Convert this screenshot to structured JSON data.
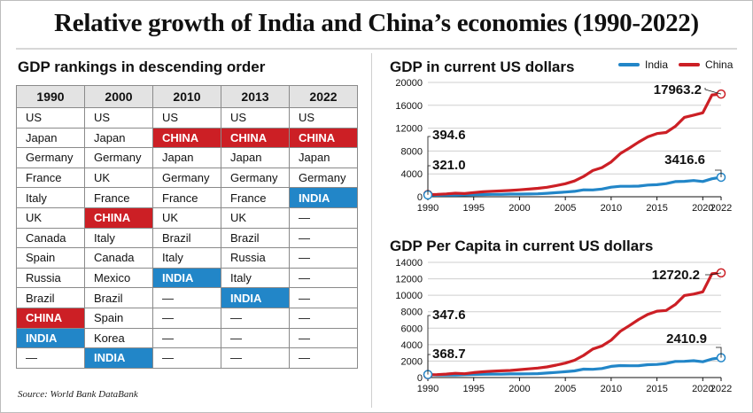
{
  "title": "Relative growth of India and China’s economies (1990-2022)",
  "rankings": {
    "heading": "GDP rankings in descending order",
    "columns": [
      "1990",
      "2000",
      "2010",
      "2013",
      "2022"
    ],
    "rows": [
      [
        "US",
        "US",
        "US",
        "US",
        "US"
      ],
      [
        "Japan",
        "Japan",
        "CHINA",
        "CHINA",
        "CHINA"
      ],
      [
        "Germany",
        "Germany",
        "Japan",
        "Japan",
        "Japan"
      ],
      [
        "France",
        "UK",
        "Germany",
        "Germany",
        "Germany"
      ],
      [
        "Italy",
        "France",
        "France",
        "France",
        "INDIA"
      ],
      [
        "UK",
        "CHINA",
        "UK",
        "UK",
        "—"
      ],
      [
        "Canada",
        "Italy",
        "Brazil",
        "Brazil",
        "—"
      ],
      [
        "Spain",
        "Canada",
        "Italy",
        "Russia",
        "—"
      ],
      [
        "Russia",
        "Mexico",
        "INDIA",
        "Italy",
        "—"
      ],
      [
        "Brazil",
        "Brazil",
        "—",
        "INDIA",
        "—"
      ],
      [
        "CHINA",
        "Spain",
        "—",
        "—",
        "—"
      ],
      [
        "INDIA",
        "Korea",
        "—",
        "—",
        "—"
      ],
      [
        "—",
        "INDIA",
        "—",
        "—",
        "—"
      ]
    ],
    "colors": {
      "china": "#cc1f25",
      "india": "#2286c8"
    }
  },
  "source": "Source: World Bank DataBank",
  "legend": {
    "india": "India",
    "china": "China"
  },
  "chart_data": [
    {
      "type": "line",
      "title": "GDP in current US dollars",
      "xlabel": "",
      "ylabel": "",
      "xlim": [
        1990,
        2022
      ],
      "ylim": [
        0,
        20000
      ],
      "xticks": [
        1990,
        1995,
        2000,
        2005,
        2010,
        2015,
        2020,
        2022
      ],
      "yticks": [
        0,
        4000,
        8000,
        12000,
        16000,
        20000
      ],
      "grid": true,
      "legend": "top-right",
      "x": [
        1990,
        1991,
        1992,
        1993,
        1994,
        1995,
        1996,
        1997,
        1998,
        1999,
        2000,
        2001,
        2002,
        2003,
        2004,
        2005,
        2006,
        2007,
        2008,
        2009,
        2010,
        2011,
        2012,
        2013,
        2014,
        2015,
        2016,
        2017,
        2018,
        2019,
        2020,
        2021,
        2022
      ],
      "series": [
        {
          "name": "India",
          "color": "#2286c8",
          "values": [
            321.0,
            270,
            288,
            279,
            327,
            360,
            392,
            415,
            421,
            458,
            468,
            485,
            515,
            607,
            709,
            820,
            940,
            1217,
            1199,
            1342,
            1676,
            1823,
            1828,
            1857,
            2039,
            2104,
            2295,
            2651,
            2703,
            2836,
            2672,
            3150,
            3416.6
          ]
        },
        {
          "name": "China",
          "color": "#cc1f25",
          "values": [
            394.6,
            413,
            492,
            621,
            564,
            734,
            864,
            962,
            1029,
            1094,
            1211,
            1339,
            1471,
            1660,
            1955,
            2286,
            2752,
            3550,
            4594,
            5101,
            6087,
            7552,
            8532,
            9570,
            10476,
            11062,
            11233,
            12310,
            13895,
            14280,
            14688,
            17820,
            17963.2
          ]
        }
      ],
      "annotations": [
        {
          "series": "China",
          "x": 1990,
          "label": "394.6"
        },
        {
          "series": "India",
          "x": 1990,
          "label": "321.0"
        },
        {
          "series": "China",
          "x": 2022,
          "label": "17963.2"
        },
        {
          "series": "India",
          "x": 2022,
          "label": "3416.6"
        }
      ]
    },
    {
      "type": "line",
      "title": "GDP Per Capita in current US dollars",
      "xlabel": "",
      "ylabel": "",
      "xlim": [
        1990,
        2022
      ],
      "ylim": [
        0,
        14000
      ],
      "xticks": [
        1990,
        1995,
        2000,
        2005,
        2010,
        2015,
        2020,
        2022
      ],
      "yticks": [
        0,
        2000,
        4000,
        6000,
        8000,
        10000,
        12000,
        14000
      ],
      "grid": true,
      "x": [
        1990,
        1991,
        1992,
        1993,
        1994,
        1995,
        1996,
        1997,
        1998,
        1999,
        2000,
        2001,
        2002,
        2003,
        2004,
        2005,
        2006,
        2007,
        2008,
        2009,
        2010,
        2011,
        2012,
        2013,
        2014,
        2015,
        2016,
        2017,
        2018,
        2019,
        2020,
        2021,
        2022
      ],
      "series": [
        {
          "name": "India",
          "color": "#2286c8",
          "values": [
            368.7,
            303,
            317,
            301,
            346,
            374,
            400,
            415,
            413,
            442,
            443,
            452,
            471,
            546,
            627,
            714,
            806,
            1028,
            998,
            1101,
            1358,
            1450,
            1434,
            1438,
            1560,
            1590,
            1714,
            1958,
            1974,
            2050,
            1913,
            2250,
            2410.9
          ]
        },
        {
          "name": "China",
          "color": "#cc1f25",
          "values": [
            347.6,
            357,
            419,
            520,
            466,
            601,
            699,
            770,
            817,
            864,
            959,
            1053,
            1149,
            1289,
            1509,
            1753,
            2099,
            2694,
            3468,
            3832,
            4550,
            5618,
            6317,
            7051,
            7679,
            8066,
            8148,
            8879,
            9977,
            10144,
            10409,
            12618,
            12720.2
          ]
        }
      ],
      "annotations": [
        {
          "series": "China",
          "x": 1990,
          "label": "347.6"
        },
        {
          "series": "India",
          "x": 1990,
          "label": "368.7"
        },
        {
          "series": "China",
          "x": 2022,
          "label": "12720.2"
        },
        {
          "series": "India",
          "x": 2022,
          "label": "2410.9"
        }
      ]
    }
  ]
}
